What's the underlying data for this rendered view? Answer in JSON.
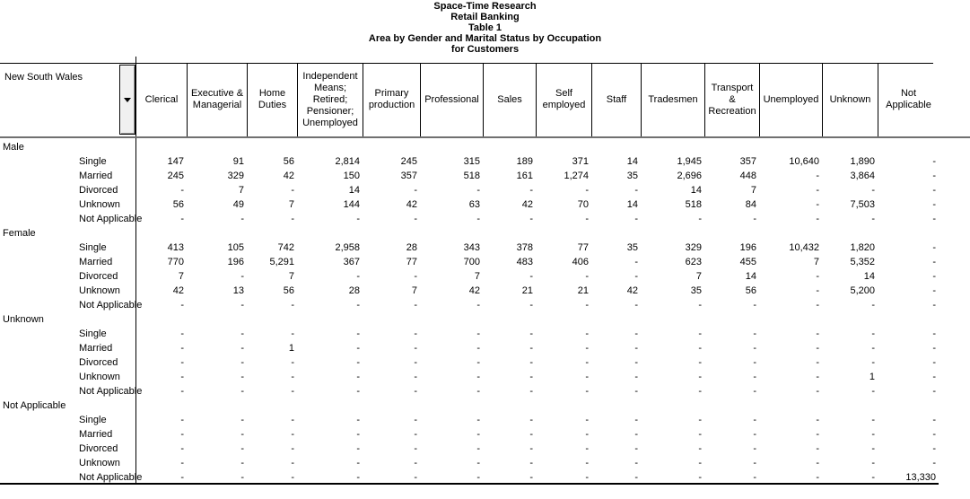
{
  "titles": [
    "Space-Time Research",
    "Retail Banking",
    "Table 1",
    "Area by Gender and Marital Status by Occupation",
    "for Customers"
  ],
  "colors": {
    "grid": "#000000",
    "header_underline": "#707070",
    "dropdown_button_bg": "#f0f0f0"
  },
  "table": {
    "row_dimension": "New South Wales",
    "columns": [
      "Clerical",
      "Executive & Managerial",
      "Home Duties",
      "Independent Means; Retired; Pensioner; Unemployed",
      "Primary production",
      "Professional",
      "Sales",
      "Self employed",
      "Staff",
      "Tradesmen",
      "Transport & Recreation",
      "Unemployed",
      "Unknown",
      "Not Applicable"
    ],
    "groups": [
      {
        "label": "Male",
        "rows": [
          {
            "label": "Single",
            "values": [
              "147",
              "91",
              "56",
              "2,814",
              "245",
              "315",
              "189",
              "371",
              "14",
              "1,945",
              "357",
              "10,640",
              "1,890",
              "-"
            ]
          },
          {
            "label": "Married",
            "values": [
              "245",
              "329",
              "42",
              "150",
              "357",
              "518",
              "161",
              "1,274",
              "35",
              "2,696",
              "448",
              "-",
              "3,864",
              "-"
            ]
          },
          {
            "label": "Divorced",
            "values": [
              "-",
              "7",
              "-",
              "14",
              "-",
              "-",
              "-",
              "-",
              "-",
              "14",
              "7",
              "-",
              "-",
              "-"
            ]
          },
          {
            "label": "Unknown",
            "values": [
              "56",
              "49",
              "7",
              "144",
              "42",
              "63",
              "42",
              "70",
              "14",
              "518",
              "84",
              "-",
              "7,503",
              "-"
            ]
          },
          {
            "label": "Not Applicable",
            "values": [
              "-",
              "-",
              "-",
              "-",
              "-",
              "-",
              "-",
              "-",
              "-",
              "-",
              "-",
              "-",
              "-",
              "-"
            ]
          }
        ]
      },
      {
        "label": "Female",
        "rows": [
          {
            "label": "Single",
            "values": [
              "413",
              "105",
              "742",
              "2,958",
              "28",
              "343",
              "378",
              "77",
              "35",
              "329",
              "196",
              "10,432",
              "1,820",
              "-"
            ]
          },
          {
            "label": "Married",
            "values": [
              "770",
              "196",
              "5,291",
              "367",
              "77",
              "700",
              "483",
              "406",
              "-",
              "623",
              "455",
              "7",
              "5,352",
              "-"
            ]
          },
          {
            "label": "Divorced",
            "values": [
              "7",
              "-",
              "7",
              "-",
              "-",
              "7",
              "-",
              "-",
              "-",
              "7",
              "14",
              "-",
              "14",
              "-"
            ]
          },
          {
            "label": "Unknown",
            "values": [
              "42",
              "13",
              "56",
              "28",
              "7",
              "42",
              "21",
              "21",
              "42",
              "35",
              "56",
              "-",
              "5,200",
              "-"
            ]
          },
          {
            "label": "Not Applicable",
            "values": [
              "-",
              "-",
              "-",
              "-",
              "-",
              "-",
              "-",
              "-",
              "-",
              "-",
              "-",
              "-",
              "-",
              "-"
            ]
          }
        ]
      },
      {
        "label": "Unknown",
        "rows": [
          {
            "label": "Single",
            "values": [
              "-",
              "-",
              "-",
              "-",
              "-",
              "-",
              "-",
              "-",
              "-",
              "-",
              "-",
              "-",
              "-",
              "-"
            ]
          },
          {
            "label": "Married",
            "values": [
              "-",
              "-",
              "1",
              "-",
              "-",
              "-",
              "-",
              "-",
              "-",
              "-",
              "-",
              "-",
              "-",
              "-"
            ]
          },
          {
            "label": "Divorced",
            "values": [
              "-",
              "-",
              "-",
              "-",
              "-",
              "-",
              "-",
              "-",
              "-",
              "-",
              "-",
              "-",
              "-",
              "-"
            ]
          },
          {
            "label": "Unknown",
            "values": [
              "-",
              "-",
              "-",
              "-",
              "-",
              "-",
              "-",
              "-",
              "-",
              "-",
              "-",
              "-",
              "1",
              "-"
            ]
          },
          {
            "label": "Not Applicable",
            "values": [
              "-",
              "-",
              "-",
              "-",
              "-",
              "-",
              "-",
              "-",
              "-",
              "-",
              "-",
              "-",
              "-",
              "-"
            ]
          }
        ]
      },
      {
        "label": "Not Applicable",
        "rows": [
          {
            "label": "Single",
            "values": [
              "-",
              "-",
              "-",
              "-",
              "-",
              "-",
              "-",
              "-",
              "-",
              "-",
              "-",
              "-",
              "-",
              "-"
            ]
          },
          {
            "label": "Married",
            "values": [
              "-",
              "-",
              "-",
              "-",
              "-",
              "-",
              "-",
              "-",
              "-",
              "-",
              "-",
              "-",
              "-",
              "-"
            ]
          },
          {
            "label": "Divorced",
            "values": [
              "-",
              "-",
              "-",
              "-",
              "-",
              "-",
              "-",
              "-",
              "-",
              "-",
              "-",
              "-",
              "-",
              "-"
            ]
          },
          {
            "label": "Unknown",
            "values": [
              "-",
              "-",
              "-",
              "-",
              "-",
              "-",
              "-",
              "-",
              "-",
              "-",
              "-",
              "-",
              "-",
              "-"
            ]
          },
          {
            "label": "Not Applicable",
            "values": [
              "-",
              "-",
              "-",
              "-",
              "-",
              "-",
              "-",
              "-",
              "-",
              "-",
              "-",
              "-",
              "-",
              "13,330"
            ]
          }
        ]
      }
    ]
  }
}
